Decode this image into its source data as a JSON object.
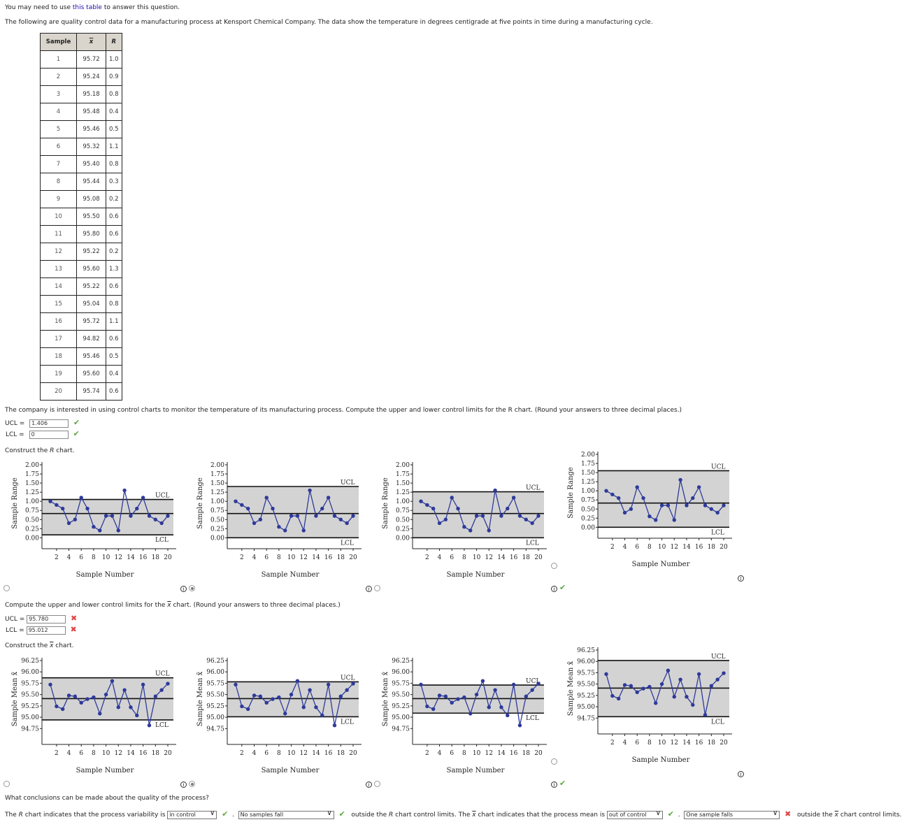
{
  "intro": {
    "pre_link": "You may need to use ",
    "link_text": "this table",
    "post_link": " to answer this question.",
    "description": "The following are quality control data for a manufacturing process at Kensport Chemical Company. The data show the temperature in degrees centigrade at five points in time during a manufacturing cycle."
  },
  "table": {
    "headers": [
      "Sample",
      "x",
      "R"
    ],
    "rows": [
      [
        "1",
        "95.72",
        "1.0"
      ],
      [
        "2",
        "95.24",
        "0.9"
      ],
      [
        "3",
        "95.18",
        "0.8"
      ],
      [
        "4",
        "95.48",
        "0.4"
      ],
      [
        "5",
        "95.46",
        "0.5"
      ],
      [
        "6",
        "95.32",
        "1.1"
      ],
      [
        "7",
        "95.40",
        "0.8"
      ],
      [
        "8",
        "95.44",
        "0.3"
      ],
      [
        "9",
        "95.08",
        "0.2"
      ],
      [
        "10",
        "95.50",
        "0.6"
      ],
      [
        "11",
        "95.80",
        "0.6"
      ],
      [
        "12",
        "95.22",
        "0.2"
      ],
      [
        "13",
        "95.60",
        "1.3"
      ],
      [
        "14",
        "95.22",
        "0.6"
      ],
      [
        "15",
        "95.04",
        "0.8"
      ],
      [
        "16",
        "95.72",
        "1.1"
      ],
      [
        "17",
        "94.82",
        "0.6"
      ],
      [
        "18",
        "95.46",
        "0.5"
      ],
      [
        "19",
        "95.60",
        "0.4"
      ],
      [
        "20",
        "95.74",
        "0.6"
      ]
    ]
  },
  "r_section": {
    "question": "The company is interested in using control charts to monitor the temperature of its manufacturing process. Compute the upper and lower control limits for the R chart. (Round your answers to three decimal places.)",
    "ucl_label": "UCL",
    "ucl_value": "1.406",
    "ucl_status": "correct",
    "lcl_label": "LCL",
    "lcl_value": "0",
    "lcl_status": "correct",
    "construct_text": "Construct the R chart.",
    "selected_option": 2,
    "correct_mark_option": 3
  },
  "xbar_section": {
    "question_pre": "Compute the upper and lower control limits for the ",
    "question_post": " chart. (Round your answers to three decimal places.)",
    "ucl_label": "UCL",
    "ucl_value": "95.780",
    "ucl_status": "incorrect",
    "lcl_label": "LCL",
    "lcl_value": "95.012",
    "lcl_status": "incorrect",
    "construct_pre": "Construct the ",
    "construct_post": " chart.",
    "selected_option": 2,
    "correct_mark_option": 3
  },
  "conclusions": {
    "question": "What conclusions can be made about the quality of the process?",
    "r_pre": "The R chart indicates that the process variability is",
    "r_select1": "in control",
    "r_select1_status": "correct",
    "r_select2": "No samples fall",
    "r_select2_status": "correct",
    "r_post": "outside the R chart control limits. The",
    "x_pre": "chart indicates that the process mean is",
    "x_select1": "out of control",
    "x_select1_status": "correct",
    "x_select2": "One sample falls",
    "x_select2_status": "incorrect",
    "x_post": "chart control limits.",
    "x_outside": "outside the"
  },
  "icons": {
    "check": "✔",
    "cross": "✖",
    "info": "i",
    "chevron": "∨"
  },
  "colors": {
    "series": "#2e3a9a",
    "band": "#d3d3d3",
    "correct": "#5aa842",
    "incorrect": "#e04545",
    "link": "#1a0dab"
  },
  "chart_data": [
    {
      "type": "line",
      "title": "R chart option 1",
      "xlabel": "Sample Number",
      "ylabel": "Sample Range",
      "x": [
        1,
        2,
        3,
        4,
        5,
        6,
        7,
        8,
        9,
        10,
        11,
        12,
        13,
        14,
        15,
        16,
        17,
        18,
        19,
        20
      ],
      "values": [
        1.0,
        0.9,
        0.8,
        0.4,
        0.5,
        1.1,
        0.8,
        0.3,
        0.2,
        0.6,
        0.6,
        0.2,
        1.3,
        0.6,
        0.8,
        1.1,
        0.6,
        0.5,
        0.4,
        0.6
      ],
      "ucl": 1.05,
      "cl": 0.665,
      "lcl": 0.08,
      "yticks": [
        "0.00",
        "0.25",
        "0.50",
        "0.75",
        "1.00",
        "1.25",
        "1.50",
        "1.75",
        "2.00"
      ],
      "ylim": [
        -0.3,
        2.0
      ],
      "xticks": [
        "2",
        "4",
        "6",
        "8",
        "10",
        "12",
        "14",
        "16",
        "18",
        "20"
      ],
      "annotations": [
        "UCL",
        "LCL"
      ]
    },
    {
      "type": "line",
      "title": "R chart option 2",
      "xlabel": "Sample Number",
      "ylabel": "Sample Range",
      "x": [
        1,
        2,
        3,
        4,
        5,
        6,
        7,
        8,
        9,
        10,
        11,
        12,
        13,
        14,
        15,
        16,
        17,
        18,
        19,
        20
      ],
      "values": [
        1.0,
        0.9,
        0.8,
        0.4,
        0.5,
        1.1,
        0.8,
        0.3,
        0.2,
        0.6,
        0.6,
        0.2,
        1.3,
        0.6,
        0.8,
        1.1,
        0.6,
        0.5,
        0.4,
        0.6
      ],
      "ucl": 1.406,
      "cl": 0.665,
      "lcl": 0.0,
      "yticks": [
        "0.00",
        "0.25",
        "0.50",
        "0.75",
        "1.00",
        "1.25",
        "1.50",
        "1.75",
        "2.00"
      ],
      "ylim": [
        -0.3,
        2.0
      ],
      "xticks": [
        "2",
        "4",
        "6",
        "8",
        "10",
        "12",
        "14",
        "16",
        "18",
        "20"
      ],
      "annotations": [
        "UCL",
        "LCL"
      ]
    },
    {
      "type": "line",
      "title": "R chart option 3",
      "xlabel": "Sample Number",
      "ylabel": "Sample Range",
      "x": [
        1,
        2,
        3,
        4,
        5,
        6,
        7,
        8,
        9,
        10,
        11,
        12,
        13,
        14,
        15,
        16,
        17,
        18,
        19,
        20
      ],
      "values": [
        1.0,
        0.9,
        0.8,
        0.4,
        0.5,
        1.1,
        0.8,
        0.3,
        0.2,
        0.6,
        0.6,
        0.2,
        1.3,
        0.6,
        0.8,
        1.1,
        0.6,
        0.5,
        0.4,
        0.6
      ],
      "ucl": 1.26,
      "cl": 0.665,
      "lcl": 0.0,
      "yticks": [
        "0.00",
        "0.25",
        "0.50",
        "0.75",
        "1.00",
        "1.25",
        "1.50",
        "1.75",
        "2.00"
      ],
      "ylim": [
        -0.3,
        2.0
      ],
      "xticks": [
        "2",
        "4",
        "6",
        "8",
        "10",
        "12",
        "14",
        "16",
        "18",
        "20"
      ],
      "annotations": [
        "UCL",
        "LCL"
      ]
    },
    {
      "type": "line",
      "title": "R chart option 4",
      "xlabel": "Sample Number",
      "ylabel": "Sample Range",
      "x": [
        1,
        2,
        3,
        4,
        5,
        6,
        7,
        8,
        9,
        10,
        11,
        12,
        13,
        14,
        15,
        16,
        17,
        18,
        19,
        20
      ],
      "values": [
        1.0,
        0.9,
        0.8,
        0.4,
        0.5,
        1.1,
        0.8,
        0.3,
        0.2,
        0.6,
        0.6,
        0.2,
        1.3,
        0.6,
        0.8,
        1.1,
        0.6,
        0.5,
        0.4,
        0.6
      ],
      "ucl": 1.55,
      "cl": 0.665,
      "lcl": 0.0,
      "yticks": [
        "0.00",
        "0.25",
        "0.50",
        "0.75",
        "1.00",
        "1.25",
        "1.50",
        "1.75",
        "2.00"
      ],
      "ylim": [
        -0.3,
        2.0
      ],
      "xticks": [
        "2",
        "4",
        "6",
        "8",
        "10",
        "12",
        "14",
        "16",
        "18",
        "20"
      ],
      "annotations": [
        "UCL",
        "LCL"
      ]
    },
    {
      "type": "line",
      "title": "x-bar chart option 1",
      "xlabel": "Sample Number",
      "ylabel": "Sample Mean x̄",
      "x": [
        1,
        2,
        3,
        4,
        5,
        6,
        7,
        8,
        9,
        10,
        11,
        12,
        13,
        14,
        15,
        16,
        17,
        18,
        19,
        20
      ],
      "values": [
        95.72,
        95.24,
        95.18,
        95.48,
        95.46,
        95.32,
        95.4,
        95.44,
        95.08,
        95.5,
        95.8,
        95.22,
        95.6,
        95.22,
        95.04,
        95.72,
        94.82,
        95.46,
        95.6,
        95.74
      ],
      "ucl": 95.87,
      "cl": 95.41,
      "lcl": 94.94,
      "yticks": [
        "94.75",
        "95.00",
        "95.25",
        "95.50",
        "95.75",
        "96.00",
        "96.25"
      ],
      "ylim": [
        94.4,
        96.25
      ],
      "xticks": [
        "2",
        "4",
        "6",
        "8",
        "10",
        "12",
        "14",
        "16",
        "18",
        "20"
      ],
      "annotations": [
        "UCL",
        "LCL"
      ]
    },
    {
      "type": "line",
      "title": "x-bar chart option 2",
      "xlabel": "Sample Number",
      "ylabel": "Sample Mean x̄",
      "x": [
        1,
        2,
        3,
        4,
        5,
        6,
        7,
        8,
        9,
        10,
        11,
        12,
        13,
        14,
        15,
        16,
        17,
        18,
        19,
        20
      ],
      "values": [
        95.72,
        95.24,
        95.18,
        95.48,
        95.46,
        95.32,
        95.4,
        95.44,
        95.08,
        95.5,
        95.8,
        95.22,
        95.6,
        95.22,
        95.04,
        95.72,
        94.82,
        95.46,
        95.6,
        95.74
      ],
      "ucl": 95.78,
      "cl": 95.41,
      "lcl": 95.01,
      "yticks": [
        "94.75",
        "95.00",
        "95.25",
        "95.50",
        "95.75",
        "96.00",
        "96.25"
      ],
      "ylim": [
        94.4,
        96.25
      ],
      "xticks": [
        "2",
        "4",
        "6",
        "8",
        "10",
        "12",
        "14",
        "16",
        "18",
        "20"
      ],
      "annotations": [
        "UCL",
        "LCL"
      ]
    },
    {
      "type": "line",
      "title": "x-bar chart option 3",
      "xlabel": "Sample Number",
      "ylabel": "Sample Mean x̄",
      "x": [
        1,
        2,
        3,
        4,
        5,
        6,
        7,
        8,
        9,
        10,
        11,
        12,
        13,
        14,
        15,
        16,
        17,
        18,
        19,
        20
      ],
      "values": [
        95.72,
        95.24,
        95.18,
        95.48,
        95.46,
        95.32,
        95.4,
        95.44,
        95.08,
        95.5,
        95.8,
        95.22,
        95.6,
        95.22,
        95.04,
        95.72,
        94.82,
        95.46,
        95.6,
        95.74
      ],
      "ucl": 95.71,
      "cl": 95.41,
      "lcl": 95.09,
      "yticks": [
        "94.75",
        "95.00",
        "95.25",
        "95.50",
        "95.75",
        "96.00",
        "96.25"
      ],
      "ylim": [
        94.4,
        96.25
      ],
      "xticks": [
        "2",
        "4",
        "6",
        "8",
        "10",
        "12",
        "14",
        "16",
        "18",
        "20"
      ],
      "annotations": [
        "UCL",
        "LCL"
      ]
    },
    {
      "type": "line",
      "title": "x-bar chart option 4",
      "xlabel": "Sample Number",
      "ylabel": "Sample Mean x̄",
      "x": [
        1,
        2,
        3,
        4,
        5,
        6,
        7,
        8,
        9,
        10,
        11,
        12,
        13,
        14,
        15,
        16,
        17,
        18,
        19,
        20
      ],
      "values": [
        95.72,
        95.24,
        95.18,
        95.48,
        95.46,
        95.32,
        95.4,
        95.44,
        95.08,
        95.5,
        95.8,
        95.22,
        95.6,
        95.22,
        95.04,
        95.72,
        94.82,
        95.46,
        95.6,
        95.74
      ],
      "ucl": 96.02,
      "cl": 95.41,
      "lcl": 94.78,
      "yticks": [
        "94.75",
        "95.00",
        "95.25",
        "95.50",
        "95.75",
        "96.00",
        "96.25"
      ],
      "ylim": [
        94.4,
        96.25
      ],
      "xticks": [
        "2",
        "4",
        "6",
        "8",
        "10",
        "12",
        "14",
        "16",
        "18",
        "20"
      ],
      "annotations": [
        "UCL",
        "LCL"
      ]
    }
  ]
}
